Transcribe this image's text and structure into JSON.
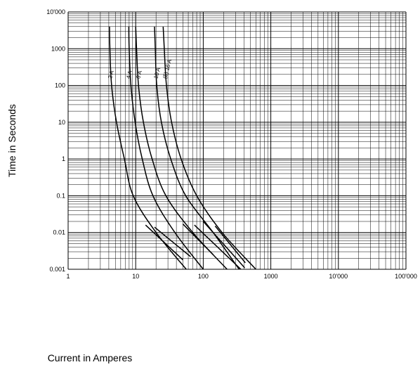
{
  "chart_data": {
    "type": "line",
    "title": "",
    "xlabel": "Current in Amperes",
    "ylabel": "Time in Seconds",
    "x_scale": "log",
    "y_scale": "log",
    "xlim": [
      1,
      100000
    ],
    "ylim": [
      0.001,
      10000
    ],
    "grid": true,
    "x_ticks": [
      {
        "value": 1,
        "label": "1"
      },
      {
        "value": 10,
        "label": "10"
      },
      {
        "value": 100,
        "label": "100"
      },
      {
        "value": 1000,
        "label": "1000"
      },
      {
        "value": 10000,
        "label": "10'000"
      },
      {
        "value": 100000,
        "label": "100'000"
      }
    ],
    "y_ticks": [
      {
        "value": 10000,
        "label": "10'000"
      },
      {
        "value": 1000,
        "label": "1000"
      },
      {
        "value": 100,
        "label": "100"
      },
      {
        "value": 10,
        "label": "10"
      },
      {
        "value": 1,
        "label": "1"
      },
      {
        "value": 0.1,
        "label": "0.1"
      },
      {
        "value": 0.01,
        "label": "0.01"
      },
      {
        "value": 0.001,
        "label": "0.001"
      }
    ],
    "series": [
      {
        "name": "2 A",
        "label_at": [
          4.4,
          150
        ],
        "points": [
          [
            4.1,
            4000
          ],
          [
            4.15,
            1000
          ],
          [
            4.4,
            100
          ],
          [
            5.2,
            10
          ],
          [
            6.8,
            1
          ],
          [
            9.2,
            0.1
          ],
          [
            20,
            0.01
          ],
          [
            56,
            0.001
          ]
        ]
      },
      {
        "name": "4 A",
        "label_at": [
          8.2,
          150
        ],
        "points": [
          [
            7.9,
            4000
          ],
          [
            8.0,
            1000
          ],
          [
            8.5,
            100
          ],
          [
            9.8,
            10
          ],
          [
            12.5,
            1
          ],
          [
            18,
            0.1
          ],
          [
            38,
            0.01
          ],
          [
            100,
            0.001
          ]
        ]
      },
      {
        "name": "6 A",
        "label_at": [
          11.5,
          150
        ],
        "points": [
          [
            10.0,
            4000
          ],
          [
            10.3,
            1000
          ],
          [
            11.0,
            100
          ],
          [
            13,
            10
          ],
          [
            17.5,
            1
          ],
          [
            28,
            0.1
          ],
          [
            70,
            0.01
          ],
          [
            225,
            0.001
          ]
        ]
      },
      {
        "name": "10 A",
        "label_at": [
          21,
          150
        ],
        "points": [
          [
            19,
            4000
          ],
          [
            19.5,
            1000
          ],
          [
            20.5,
            100
          ],
          [
            24,
            10
          ],
          [
            33,
            1
          ],
          [
            55,
            0.1
          ],
          [
            140,
            0.01
          ],
          [
            340,
            0.001
          ]
        ]
      },
      {
        "name": "(5) 16 A",
        "label_at": [
          28.5,
          150
        ],
        "points": [
          [
            25.5,
            4000
          ],
          [
            26.5,
            1000
          ],
          [
            28.5,
            100
          ],
          [
            34,
            10
          ],
          [
            47,
            1
          ],
          [
            80,
            0.1
          ],
          [
            190,
            0.01
          ],
          [
            600,
            0.001
          ]
        ]
      }
    ],
    "extra_segments": [
      [
        [
          14,
          0.016
        ],
        [
          50,
          0.0018
        ]
      ],
      [
        [
          19,
          0.014
        ],
        [
          65,
          0.0022
        ]
      ],
      [
        [
          50,
          0.017
        ],
        [
          140,
          0.0025
        ]
      ],
      [
        [
          74,
          0.016
        ],
        [
          360,
          0.001
        ]
      ],
      [
        [
          100,
          0.02
        ],
        [
          410,
          0.0011
        ]
      ],
      [
        [
          150,
          0.015
        ],
        [
          420,
          0.0015
        ]
      ]
    ]
  }
}
